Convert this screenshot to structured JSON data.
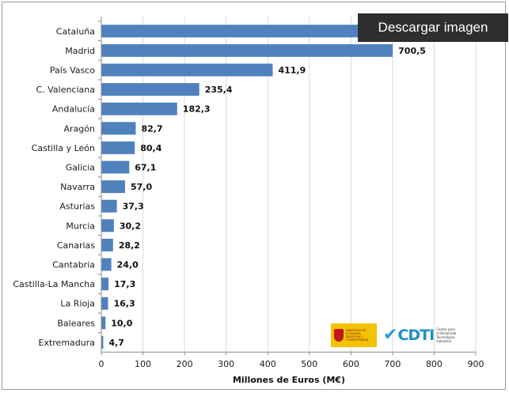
{
  "download_label": "Descargar imagen",
  "logos": {
    "government": "MINISTERIO DE ECONOMÍA, INDUSTRIA Y COMPETITIVIDAD",
    "cdti": "CDTI",
    "cdti_subtitle": "Centro para el Desarrollo Tecnológico Industrial"
  },
  "colors": {
    "bar": "#4f81bd",
    "gridline": "#d9d9d9",
    "axis": "#8c8c8c"
  },
  "chart_data": {
    "type": "bar",
    "orientation": "horizontal",
    "categories": [
      "Cataluña",
      "Madrid",
      "País Vasco",
      "C. Valenciana",
      "Andalucía",
      "Aragón",
      "Castilla y León",
      "Galicia",
      "Navarra",
      "Asturias",
      "Murcia",
      "Canarias",
      "Cantabria",
      "Castilla-La Mancha",
      "La Rioja",
      "Baleares",
      "Extremadura"
    ],
    "values": [
      740,
      700.5,
      411.9,
      235.4,
      182.3,
      82.7,
      80.4,
      67.1,
      57.0,
      37.3,
      30.2,
      28.2,
      24.0,
      17.3,
      16.3,
      10.0,
      4.7
    ],
    "value_labels": [
      "",
      "700,5",
      "411,9",
      "235,4",
      "182,3",
      "82,7",
      "80,4",
      "67,1",
      "57,0",
      "37,3",
      "30,2",
      "28,2",
      "24,0",
      "17,3",
      "16,3",
      "10,0",
      "4,7"
    ],
    "title": "",
    "xlabel": "Millones de Euros (M€)",
    "ylabel": "",
    "xlim": [
      0,
      900
    ],
    "xticks": [
      0,
      100,
      200,
      300,
      400,
      500,
      600,
      700,
      800,
      900
    ],
    "grid": "vertical"
  }
}
